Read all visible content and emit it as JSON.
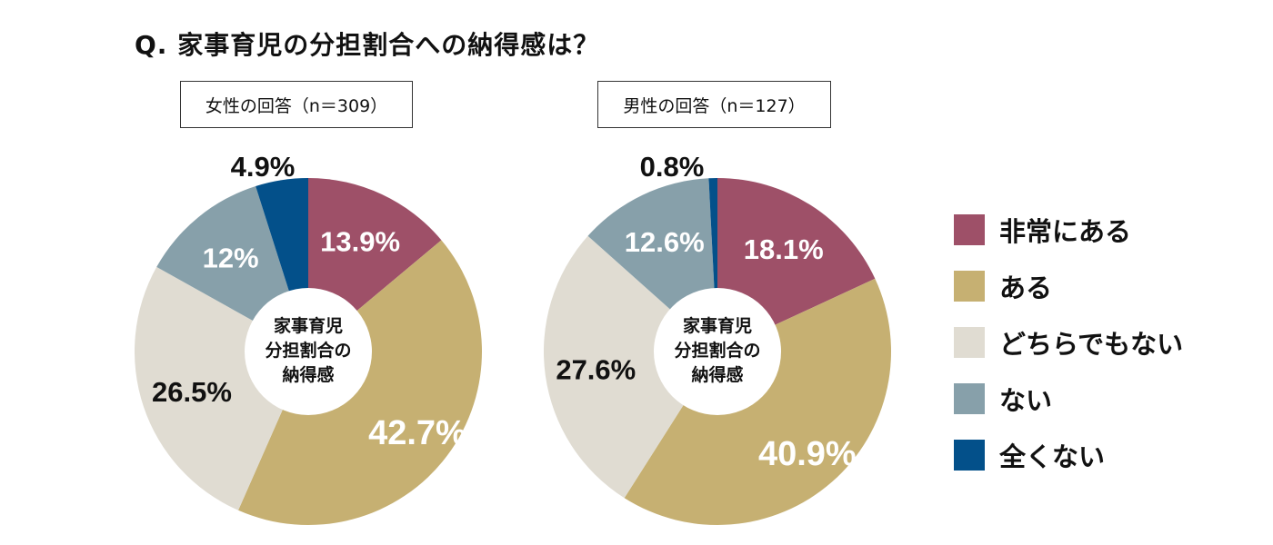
{
  "title": "Q. 家事育児の分担割合への納得感は？",
  "chart_data": [
    {
      "type": "pie",
      "subtitle": "女性の回答（n＝309）",
      "center_label": [
        "家事育児",
        "分担割合の",
        "納得感"
      ],
      "categories": [
        "非常にある",
        "ある",
        "どちらでもない",
        "ない",
        "全くない"
      ],
      "values": [
        13.9,
        42.7,
        26.5,
        12,
        4.9
      ],
      "labels": [
        "13.9%",
        "42.7%",
        "26.5%",
        "12%",
        "4.9%"
      ]
    },
    {
      "type": "pie",
      "subtitle": "男性の回答（n＝127）",
      "center_label": [
        "家事育児",
        "分担割合の",
        "納得感"
      ],
      "categories": [
        "非常にある",
        "ある",
        "どちらでもない",
        "ない",
        "全くない"
      ],
      "values": [
        18.1,
        40.9,
        27.6,
        12.6,
        0.8
      ],
      "labels": [
        "18.1%",
        "40.9%",
        "27.6%",
        "12.6%",
        "0.8%"
      ]
    }
  ],
  "legend": {
    "placement": "right",
    "items": [
      "非常にある",
      "ある",
      "どちらでもない",
      "ない",
      "全くない"
    ]
  },
  "colors": [
    "#9e5068",
    "#c6b072",
    "#e0dcd2",
    "#87a0aa",
    "#03508a"
  ]
}
